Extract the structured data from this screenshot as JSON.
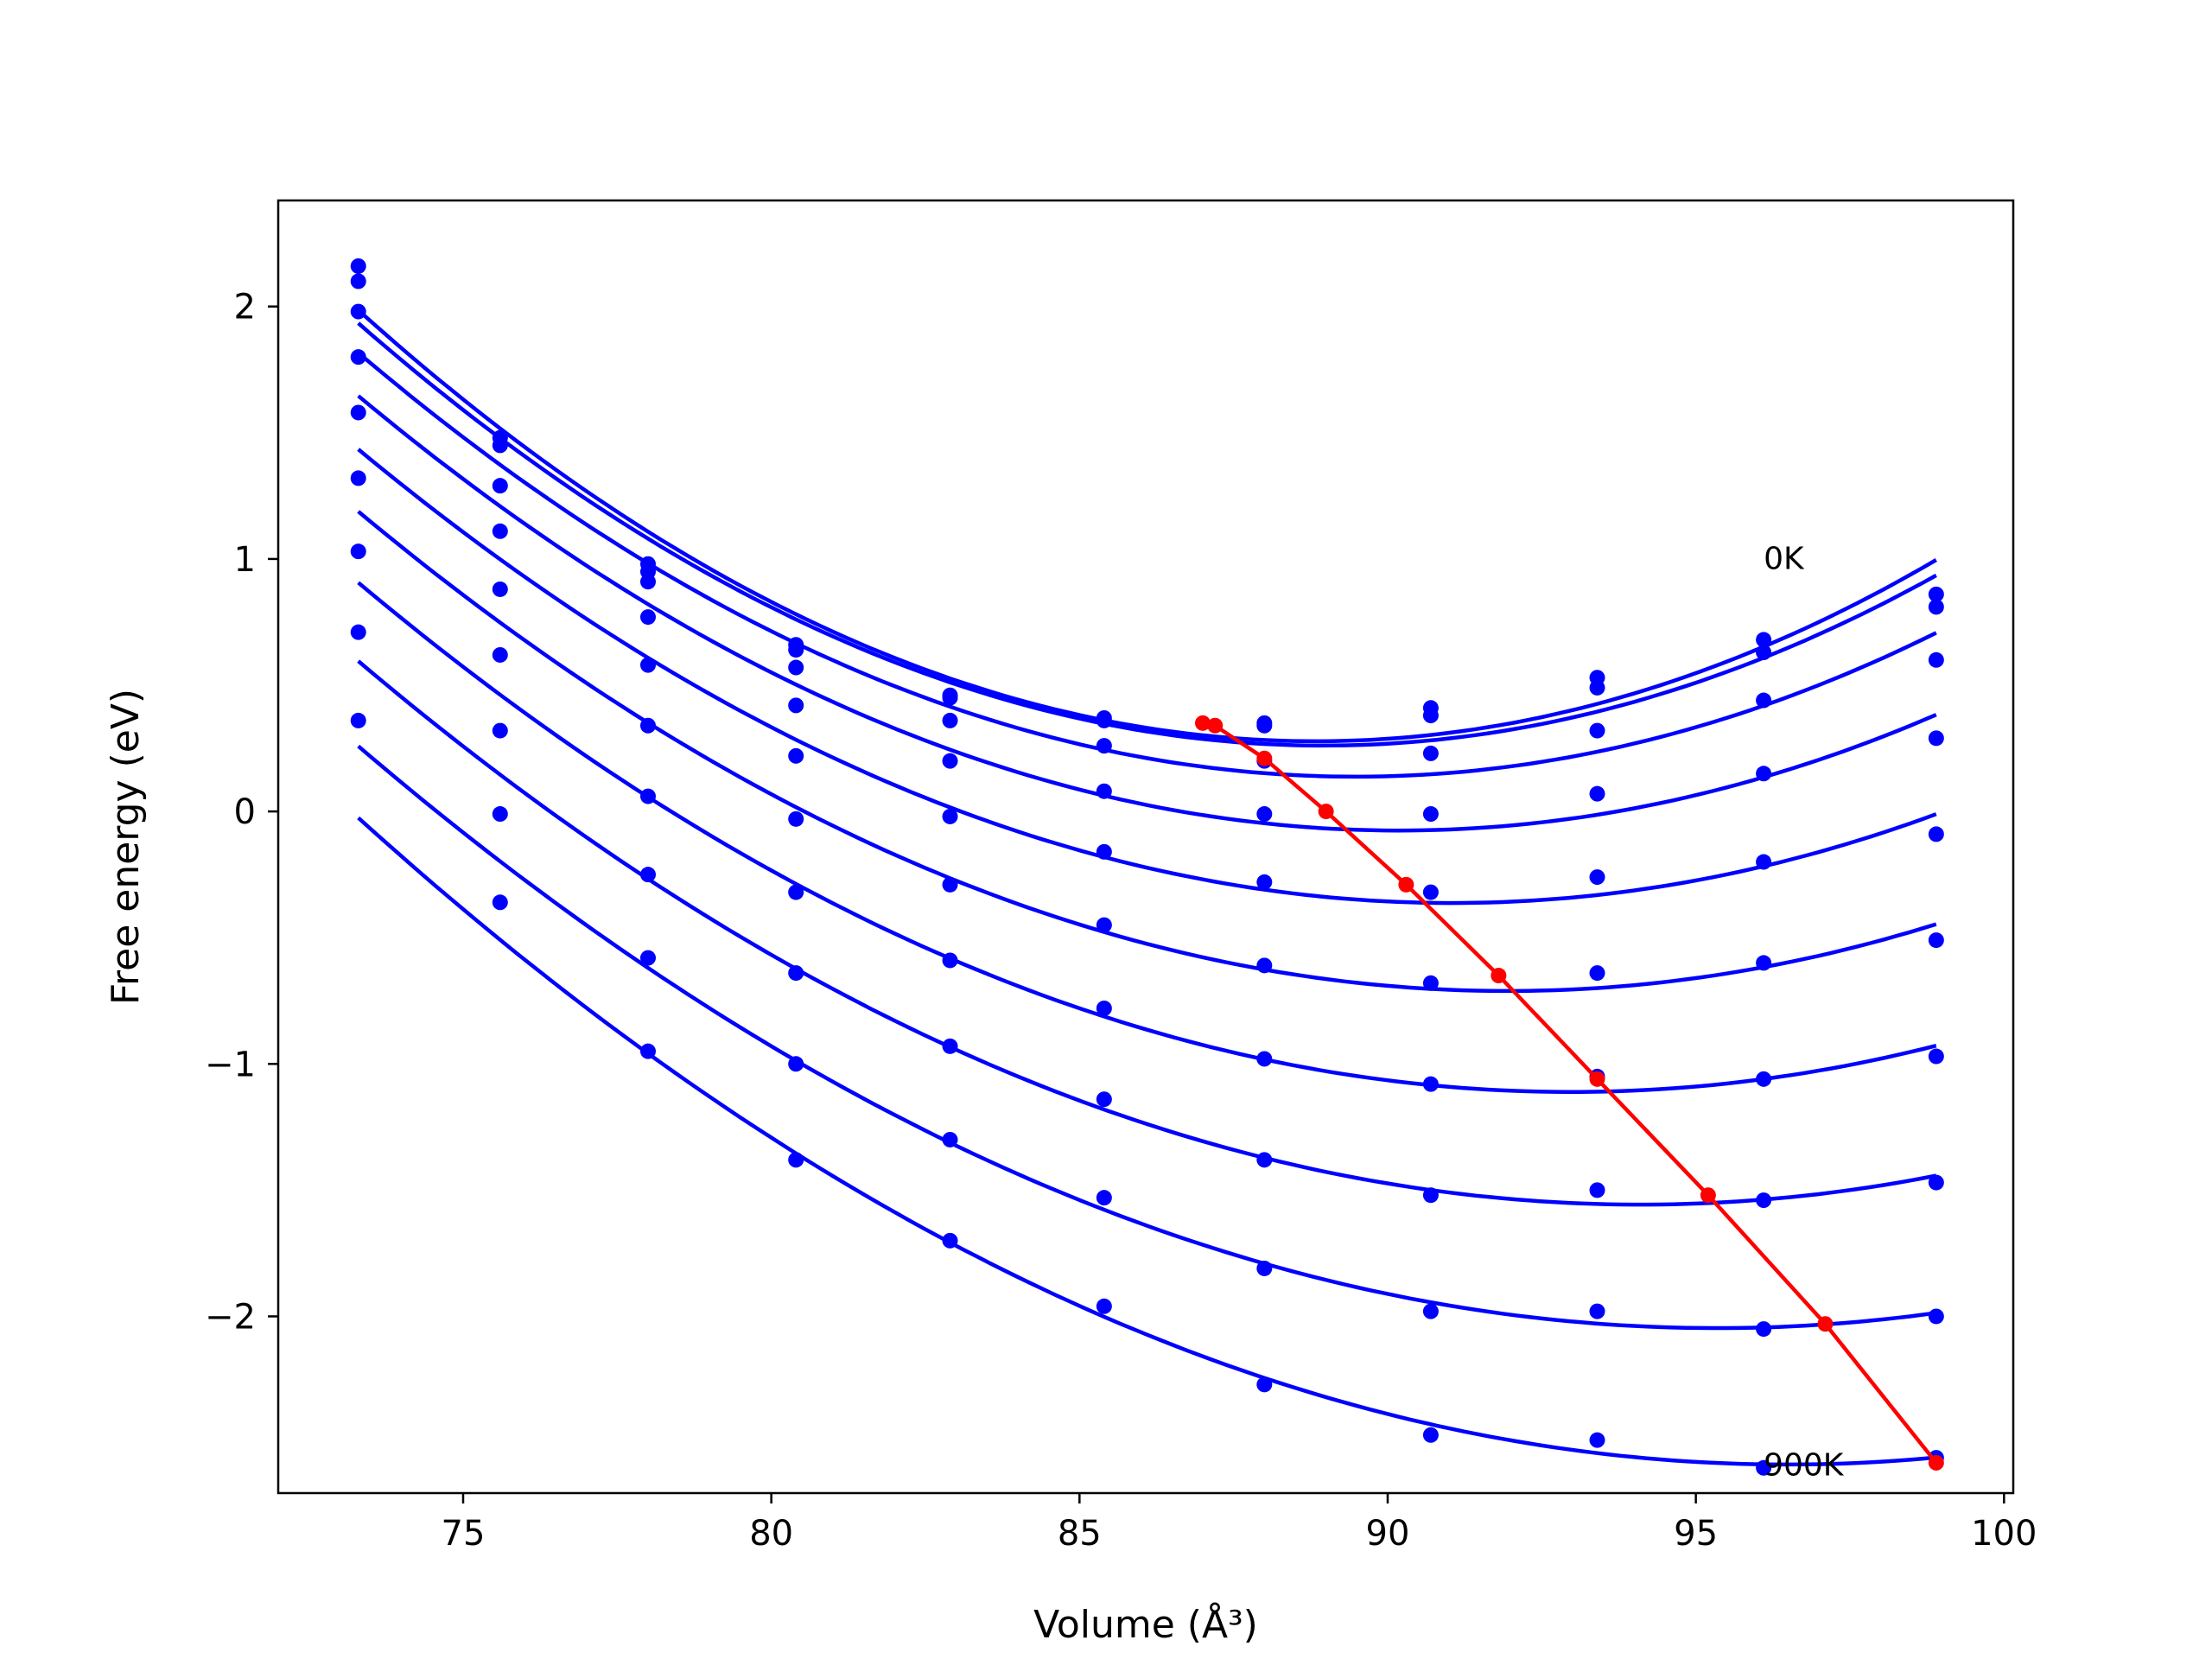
{
  "chart_data": {
    "type": "line",
    "title": "",
    "xlabel": "Volume (Å³)",
    "ylabel": "Free energy (eV)",
    "xlim": [
      72,
      100.15
    ],
    "ylim": [
      -2.7,
      2.42
    ],
    "xticks": [
      75,
      80,
      85,
      90,
      95,
      100
    ],
    "yticks": [
      -2,
      -1,
      0,
      1,
      2
    ],
    "xtick_labels": [
      "75",
      "80",
      "85",
      "90",
      "95",
      "100"
    ],
    "ytick_labels": [
      "−2",
      "−1",
      "0",
      "1",
      "2"
    ],
    "grid": false,
    "legend": "none",
    "colors": {
      "data": "#0000ff",
      "fit": "#0000ff",
      "minima": "#ff0000"
    },
    "x": [
      73.3,
      75.6,
      78.0,
      80.4,
      82.9,
      85.4,
      88.0,
      90.7,
      93.4,
      96.1,
      98.9
    ],
    "series": [
      {
        "label": "0K",
        "points": [
          2.16,
          1.48,
          0.98,
          0.66,
          0.46,
          0.37,
          0.35,
          0.41,
          0.53,
          0.68,
          0.86
        ]
      },
      {
        "label": "",
        "points": [
          2.1,
          1.45,
          0.95,
          0.64,
          0.45,
          0.36,
          0.34,
          0.38,
          0.49,
          0.63,
          0.81
        ]
      },
      {
        "label": "",
        "points": [
          1.98,
          1.29,
          0.91,
          0.57,
          0.36,
          0.26,
          0.2,
          0.23,
          0.32,
          0.44,
          0.6
        ]
      },
      {
        "label": "",
        "points": [
          1.8,
          1.11,
          0.77,
          0.42,
          0.2,
          0.08,
          -0.01,
          -0.01,
          0.07,
          0.15,
          0.29
        ]
      },
      {
        "label": "",
        "points": [
          1.58,
          0.88,
          0.58,
          0.22,
          -0.02,
          -0.16,
          -0.28,
          -0.32,
          -0.26,
          -0.2,
          -0.09
        ]
      },
      {
        "label": "",
        "points": [
          1.32,
          0.62,
          0.34,
          -0.03,
          -0.29,
          -0.45,
          -0.61,
          -0.68,
          -0.64,
          -0.6,
          -0.51
        ]
      },
      {
        "label": "",
        "points": [
          1.03,
          0.32,
          0.06,
          -0.32,
          -0.59,
          -0.78,
          -0.98,
          -1.08,
          -1.05,
          -1.06,
          -0.97
        ]
      },
      {
        "label": "",
        "points": [
          0.71,
          -0.01,
          -0.25,
          -0.64,
          -0.93,
          -1.14,
          -1.38,
          -1.52,
          -1.5,
          -1.54,
          -1.47
        ]
      },
      {
        "label": "",
        "points": [
          0.36,
          -0.36,
          -0.58,
          -1.0,
          -1.3,
          -1.53,
          -1.81,
          -1.98,
          -1.98,
          -2.05,
          -2.0
        ]
      },
      {
        "label": "900K",
        "points": [
          null,
          null,
          -0.95,
          -1.38,
          -1.7,
          -1.96,
          -2.27,
          -2.47,
          -2.49,
          -2.6,
          -2.56
        ]
      }
    ],
    "minima_line": {
      "x": [
        87.0,
        87.2,
        88.0,
        89.0,
        90.3,
        91.8,
        93.4,
        95.2,
        97.1,
        98.9
      ],
      "y": [
        0.35,
        0.34,
        0.21,
        0.0,
        -0.29,
        -0.65,
        -1.06,
        -1.52,
        -2.03,
        -2.58
      ]
    },
    "annotations": [
      {
        "text": "0K",
        "x": 96.1,
        "y": 0.96
      },
      {
        "text": "900K",
        "x": 96.1,
        "y": -2.63
      }
    ]
  }
}
